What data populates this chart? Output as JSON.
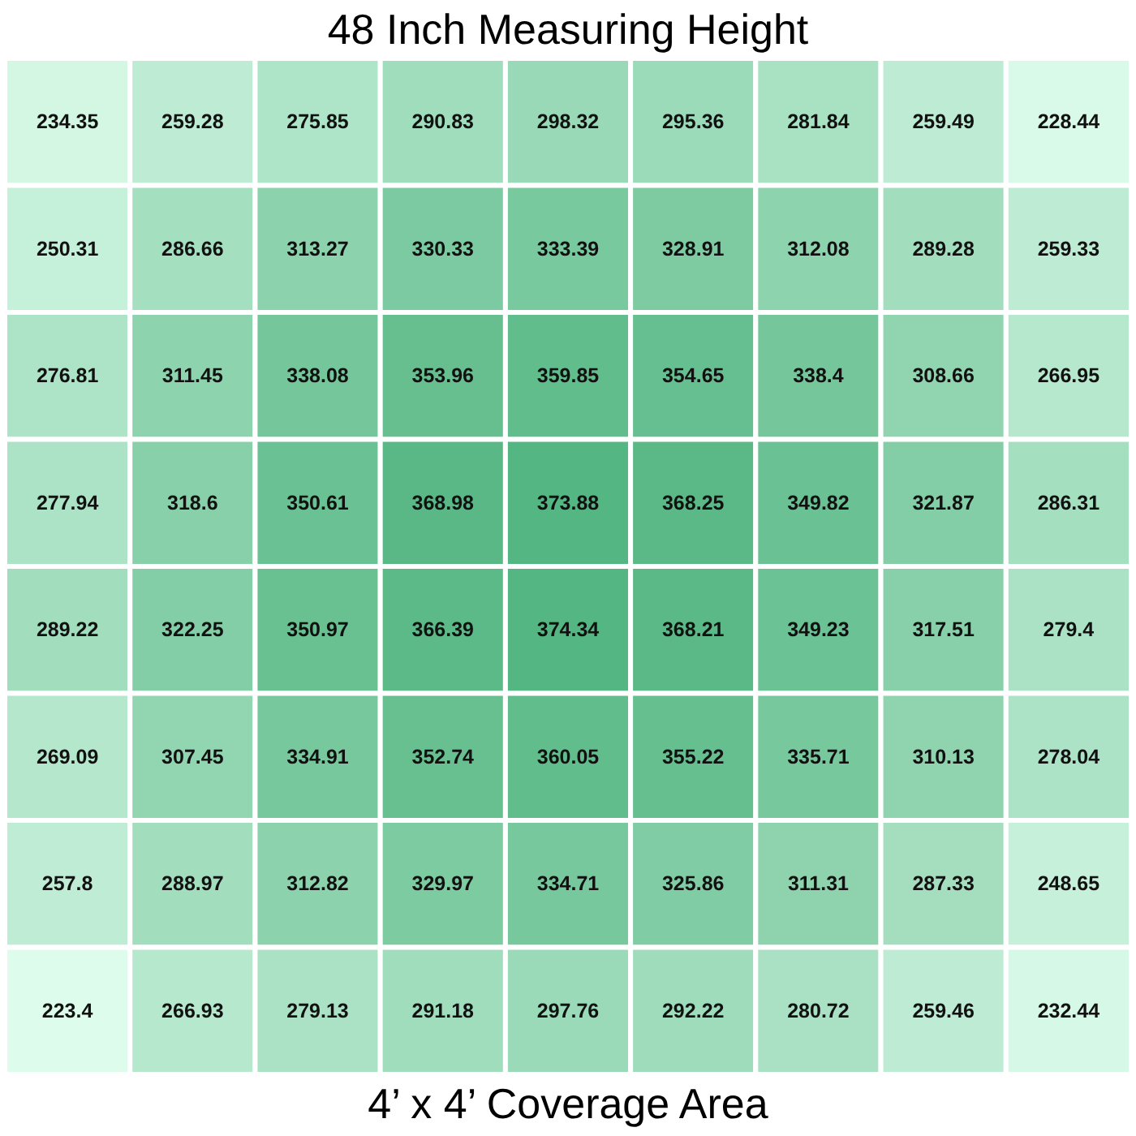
{
  "chart_data": {
    "type": "heatmap",
    "title": "48 Inch Measuring Height",
    "xlabel": "4’ x 4’ Coverage Area",
    "categories": [
      null,
      null,
      null,
      null,
      null,
      null,
      null,
      null,
      null
    ],
    "y_categories": [
      null,
      null,
      null,
      null,
      null,
      null,
      null,
      null
    ],
    "cells": [
      [
        234.35,
        259.28,
        275.85,
        290.83,
        298.32,
        295.36,
        281.84,
        259.49,
        228.44
      ],
      [
        250.31,
        286.66,
        313.27,
        330.33,
        333.39,
        328.91,
        312.08,
        289.28,
        259.33
      ],
      [
        276.81,
        311.45,
        338.08,
        353.96,
        359.85,
        354.65,
        338.4,
        308.66,
        266.95
      ],
      [
        277.94,
        318.6,
        350.61,
        368.98,
        373.88,
        368.25,
        349.82,
        321.87,
        286.31
      ],
      [
        289.22,
        322.25,
        350.97,
        366.39,
        374.34,
        368.21,
        349.23,
        317.51,
        279.4
      ],
      [
        269.09,
        307.45,
        334.91,
        352.74,
        360.05,
        355.22,
        335.71,
        310.13,
        278.04
      ],
      [
        257.8,
        288.97,
        312.82,
        329.97,
        334.71,
        325.86,
        311.31,
        287.33,
        248.65
      ],
      [
        223.4,
        266.93,
        279.13,
        291.18,
        297.76,
        292.22,
        280.72,
        259.46,
        232.44
      ]
    ],
    "data_labels": true
  }
}
